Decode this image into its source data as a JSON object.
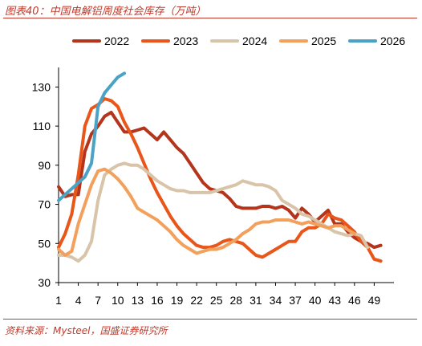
{
  "figure": {
    "title": "图表40：中国电解铝周度社会库存（万吨）",
    "source": "资料来源：Mysteel，国盛证券研究所"
  },
  "chart_data": {
    "type": "line",
    "title": "中国电解铝周度社会库存（万吨）",
    "xlabel": "",
    "ylabel": "",
    "xlim": [
      1,
      52
    ],
    "ylim": [
      30,
      140
    ],
    "x_ticks": [
      1,
      4,
      7,
      10,
      13,
      16,
      19,
      22,
      25,
      28,
      31,
      34,
      37,
      40,
      43,
      46,
      49
    ],
    "y_ticks": [
      30,
      50,
      70,
      90,
      110,
      130
    ],
    "grid": false,
    "legend_position": "top",
    "series": [
      {
        "name": "2022",
        "color": "#b5341c",
        "values": [
          79,
          74,
          75,
          75,
          97,
          106,
          110,
          115,
          117,
          112,
          107,
          107,
          108,
          109,
          106,
          103,
          107,
          103,
          99,
          96,
          91,
          86,
          81,
          78,
          77,
          76,
          73,
          69,
          68,
          68,
          68,
          69,
          69,
          68,
          69,
          67,
          63,
          68,
          65,
          61,
          64,
          67,
          60,
          60,
          56,
          53,
          51,
          50,
          48,
          49
        ]
      },
      {
        "name": "2023",
        "color": "#e8561a",
        "values": [
          48,
          55,
          65,
          85,
          110,
          119,
          121,
          124,
          123,
          120,
          112,
          106,
          99,
          91,
          83,
          76,
          70,
          64,
          59,
          55,
          52,
          49,
          48,
          48,
          49,
          51,
          52,
          51,
          50,
          47,
          44,
          43,
          45,
          47,
          49,
          51,
          51,
          56,
          58,
          58,
          60,
          65,
          63,
          62,
          59,
          56,
          51,
          48,
          42,
          41
        ]
      },
      {
        "name": "2024",
        "color": "#d8c4a8",
        "values": [
          44,
          44,
          43,
          41,
          44,
          51,
          72,
          85,
          88,
          90,
          91,
          90,
          90,
          88,
          85,
          82,
          80,
          78,
          77,
          77,
          76,
          76,
          76,
          76,
          77,
          78,
          79,
          80,
          82,
          81,
          80,
          80,
          79,
          77,
          72,
          70,
          68,
          65,
          64,
          62,
          60,
          58,
          56,
          55,
          54,
          55,
          54,
          48
        ]
      },
      {
        "name": "2025",
        "color": "#f2a05c",
        "values": [
          47,
          44,
          46,
          60,
          70,
          80,
          87,
          88,
          86,
          83,
          79,
          74,
          68,
          66,
          64,
          62,
          59,
          56,
          52,
          49,
          47,
          45,
          46,
          47,
          47,
          48,
          50,
          52,
          55,
          57,
          60,
          61,
          61,
          62,
          62,
          62,
          61,
          60,
          61,
          60,
          59,
          58,
          59,
          59,
          57,
          55
        ]
      },
      {
        "name": "2026",
        "color": "#4aa3c7",
        "values": [
          72,
          75,
          78,
          81,
          84,
          91,
          120,
          127,
          131,
          135,
          137
        ]
      }
    ]
  }
}
